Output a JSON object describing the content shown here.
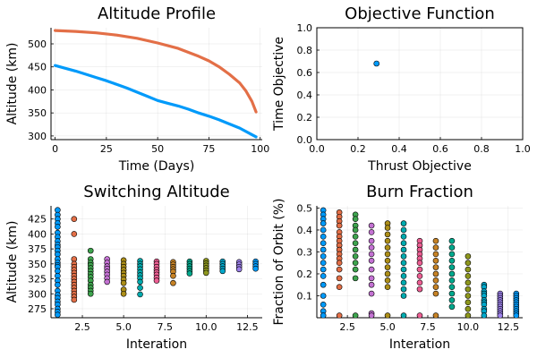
{
  "colors": [
    "#009AFA",
    "#E36F47",
    "#3EA44E",
    "#C371D2",
    "#AC8E18",
    "#00AAAE",
    "#ED5E93",
    "#C68225",
    "#00A98D",
    "#8E971D",
    "#00A8CB",
    "#9B7FE9"
  ],
  "chart_data": [
    {
      "type": "line",
      "title": "Altitude Profile",
      "xlabel": "Time (Days)",
      "ylabel": "Altitude (km)",
      "xlim": [
        -2,
        101
      ],
      "ylim": [
        292,
        535
      ],
      "xticks": [
        0,
        25,
        50,
        75,
        100
      ],
      "yticks": [
        300,
        350,
        400,
        450,
        500
      ],
      "grid": true,
      "legend": "none",
      "series": [
        {
          "color": "#009AFA",
          "x": [
            0,
            5,
            10,
            15,
            20,
            25,
            30,
            35,
            40,
            45,
            50,
            55,
            60,
            65,
            70,
            75,
            80,
            85,
            90,
            95,
            98
          ],
          "y": [
            453,
            447,
            441,
            434,
            427,
            420,
            412,
            404,
            395,
            386,
            377,
            371,
            365,
            358,
            350,
            343,
            335,
            326,
            317,
            305,
            298
          ]
        },
        {
          "color": "#E36F47",
          "x": [
            0,
            10,
            20,
            30,
            40,
            50,
            60,
            70,
            75,
            80,
            85,
            90,
            93,
            96,
            98
          ],
          "y": [
            529,
            527,
            524,
            519,
            512,
            502,
            490,
            473,
            463,
            450,
            434,
            415,
            398,
            375,
            352
          ]
        }
      ]
    },
    {
      "type": "scatter",
      "title": "Objective Function",
      "xlabel": "Thrust Objective",
      "ylabel": "Time Objective",
      "xlim": [
        0,
        1
      ],
      "ylim": [
        0,
        1
      ],
      "xticks": [
        0.0,
        0.2,
        0.4,
        0.6,
        0.8,
        1.0
      ],
      "yticks": [
        0.0,
        0.2,
        0.4,
        0.6,
        0.8,
        1.0
      ],
      "tick_labels": [
        "0.0",
        "0.2",
        "0.4",
        "0.6",
        "0.8",
        "1.0"
      ],
      "grid": true,
      "legend": "none",
      "points": [
        {
          "x": 0.29,
          "y": 0.68,
          "color": "#009AFA"
        }
      ]
    },
    {
      "type": "scatter",
      "title": "Switching Altitude",
      "xlabel": "Interation",
      "ylabel": "Altitude (km)",
      "xlim": [
        0.6,
        13.4
      ],
      "ylim": [
        260,
        447
      ],
      "xticks": [
        2.5,
        5.0,
        7.5,
        10.0,
        12.5
      ],
      "xtick_labels": [
        "2.5",
        "5.0",
        "7.5",
        "10.0",
        "12.5"
      ],
      "yticks": [
        275,
        300,
        325,
        350,
        375,
        400,
        425
      ],
      "grid": true,
      "legend": "none",
      "series": [
        {
          "x": 1,
          "y": [
            440,
            432,
            425,
            418,
            412,
            402,
            395,
            388,
            382,
            378,
            372,
            366,
            358,
            352,
            348,
            345,
            338,
            330,
            322,
            315,
            305,
            298,
            293,
            287,
            282,
            275,
            270,
            265
          ]
        },
        {
          "x": 2,
          "y": [
            425,
            400,
            358,
            350,
            345,
            340,
            335,
            330,
            325,
            320,
            315,
            310,
            305,
            300,
            295,
            290
          ]
        },
        {
          "x": 3,
          "y": [
            372,
            358,
            352,
            348,
            343,
            338,
            333,
            328,
            322,
            315,
            310,
            305,
            300
          ]
        },
        {
          "x": 4,
          "y": [
            358,
            352,
            346,
            342,
            337,
            332,
            326,
            320
          ]
        },
        {
          "x": 5,
          "y": [
            356,
            350,
            345,
            340,
            335,
            330,
            324,
            318,
            307,
            300
          ]
        },
        {
          "x": 6,
          "y": [
            355,
            350,
            346,
            341,
            336,
            331,
            326,
            320,
            310,
            299
          ]
        },
        {
          "x": 7,
          "y": [
            354,
            350,
            345,
            340,
            336,
            332,
            327,
            322
          ]
        },
        {
          "x": 8,
          "y": [
            353,
            349,
            345,
            341,
            337,
            330,
            318
          ]
        },
        {
          "x": 9,
          "y": [
            354,
            350,
            346,
            342,
            338,
            334
          ]
        },
        {
          "x": 10,
          "y": [
            355,
            351,
            347,
            343,
            339,
            335
          ]
        },
        {
          "x": 11,
          "y": [
            354,
            350,
            346,
            342,
            338
          ]
        },
        {
          "x": 12,
          "y": [
            353,
            349,
            345,
            341
          ]
        },
        {
          "x": 13,
          "y": [
            354,
            350,
            346,
            342
          ]
        }
      ]
    },
    {
      "type": "scatter",
      "title": "Burn Fraction",
      "xlabel": "Interation",
      "ylabel": "Fraction of Orbit (%)",
      "xlim": [
        0.6,
        13.4
      ],
      "ylim": [
        0,
        0.51
      ],
      "xticks": [
        2.5,
        5.0,
        7.5,
        10.0,
        12.5
      ],
      "xtick_labels": [
        "2.5",
        "5.0",
        "7.5",
        "10.0",
        "12.5"
      ],
      "yticks": [
        0.1,
        0.2,
        0.3,
        0.4,
        0.5
      ],
      "ytick_labels": [
        "0.1",
        "0.2",
        "0.3",
        "0.4",
        "0.5"
      ],
      "grid": true,
      "legend": "none",
      "series": [
        {
          "x": 1,
          "y": [
            0.49,
            0.47,
            0.45,
            0.43,
            0.4,
            0.37,
            0.34,
            0.31,
            0.28,
            0.25,
            0.22,
            0.19,
            0.15,
            0.1,
            0.06,
            0.03,
            0.01
          ]
        },
        {
          "x": 2,
          "y": [
            0.48,
            0.46,
            0.44,
            0.42,
            0.39,
            0.37,
            0.35,
            0.33,
            0.31,
            0.29,
            0.27,
            0.25,
            0.22,
            0.18,
            0.14,
            0.01
          ]
        },
        {
          "x": 3,
          "y": [
            0.47,
            0.45,
            0.42,
            0.4,
            0.37,
            0.34,
            0.31,
            0.28,
            0.25,
            0.22,
            0.18,
            0.01
          ]
        },
        {
          "x": 4,
          "y": [
            0.42,
            0.39,
            0.35,
            0.32,
            0.29,
            0.26,
            0.22,
            0.18,
            0.15,
            0.11,
            0.02,
            0.01
          ]
        },
        {
          "x": 5,
          "y": [
            0.43,
            0.41,
            0.38,
            0.35,
            0.32,
            0.29,
            0.26,
            0.23,
            0.2,
            0.17,
            0.14,
            0.01
          ]
        },
        {
          "x": 6,
          "y": [
            0.43,
            0.4,
            0.37,
            0.34,
            0.31,
            0.28,
            0.25,
            0.22,
            0.19,
            0.16,
            0.13,
            0.1,
            0.01
          ]
        },
        {
          "x": 7,
          "y": [
            0.35,
            0.33,
            0.31,
            0.29,
            0.27,
            0.25,
            0.22,
            0.19,
            0.16,
            0.13,
            0.01
          ]
        },
        {
          "x": 8,
          "y": [
            0.35,
            0.32,
            0.29,
            0.26,
            0.23,
            0.2,
            0.17,
            0.14,
            0.11,
            0.01
          ]
        },
        {
          "x": 9,
          "y": [
            0.35,
            0.32,
            0.29,
            0.26,
            0.23,
            0.2,
            0.17,
            0.14,
            0.11,
            0.08,
            0.05
          ]
        },
        {
          "x": 10,
          "y": [
            0.28,
            0.25,
            0.22,
            0.19,
            0.16,
            0.13,
            0.1,
            0.07,
            0.04,
            0.01
          ]
        },
        {
          "x": 11,
          "y": [
            0.15,
            0.14,
            0.12,
            0.11,
            0.1,
            0.08,
            0.07,
            0.06,
            0.04,
            0.03,
            0.01
          ]
        },
        {
          "x": 12,
          "y": [
            0.11,
            0.1,
            0.09,
            0.08,
            0.07,
            0.06,
            0.05,
            0.04,
            0.03,
            0.02,
            0.01
          ]
        },
        {
          "x": 13,
          "y": [
            0.11,
            0.1,
            0.09,
            0.08,
            0.07,
            0.06,
            0.05,
            0.04,
            0.03,
            0.02,
            0.01
          ]
        }
      ]
    }
  ]
}
